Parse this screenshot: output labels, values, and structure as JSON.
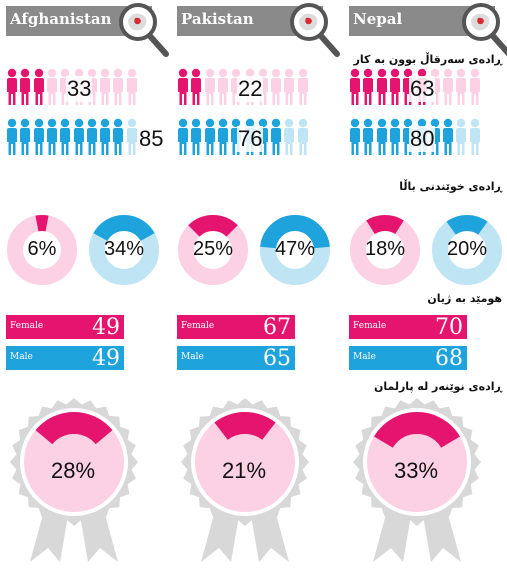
{
  "colors": {
    "female": "#e5156f",
    "female_light": "#fbd1e3",
    "male": "#1fa3dc",
    "male_light": "#bfe5f5",
    "header": "#8a8a8a"
  },
  "section_labels": {
    "marriage": "ڕادەی سەرقاڵ بوون بە کار",
    "literacy": "ڕادەی خوێندنی باڵا",
    "life_expectancy": "هومێد بە ژیان",
    "parliament": "ڕادەی نوێنەر لە پارلمان"
  },
  "bar_labels": {
    "female": "Female",
    "male": "Male"
  },
  "chart_data": [
    {
      "type": "table",
      "country": "Afghanistan",
      "work_female": 33,
      "work_male": 85,
      "higher_edu_female_pct": "6%",
      "higher_edu_male_pct": "34%",
      "life_female": 49,
      "life_male": 49,
      "parliament_pct": "28%"
    },
    {
      "type": "table",
      "country": "Pakistan",
      "work_female": 22,
      "work_male": 76,
      "higher_edu_female_pct": "25%",
      "higher_edu_male_pct": "47%",
      "life_female": 67,
      "life_male": 65,
      "parliament_pct": "21%"
    },
    {
      "type": "table",
      "country": "Nepal",
      "work_female": 63,
      "work_male": 80,
      "higher_edu_female_pct": "18%",
      "higher_edu_male_pct": "20%",
      "life_female": 70,
      "life_male": 68,
      "parliament_pct": "33%"
    }
  ]
}
